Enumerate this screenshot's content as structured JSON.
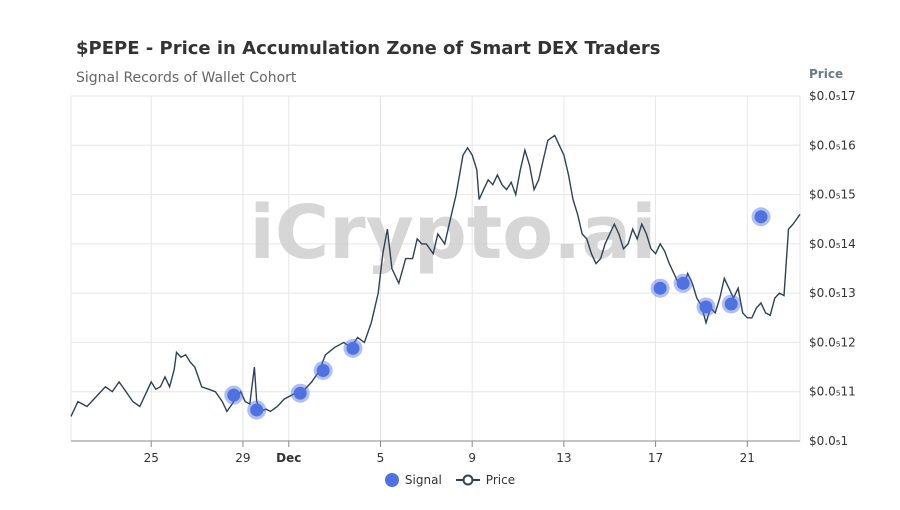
{
  "header": {
    "title": "$PEPE - Price in Accumulation Zone of Smart DEX Traders",
    "subtitle": "Signal Records of Wallet Cohort",
    "axis_title": "Price"
  },
  "watermark": "iCrypto.ai",
  "legend": {
    "signal": "Signal",
    "price": "Price"
  },
  "colors": {
    "line": "#2e4257",
    "signal": "#4f72e3",
    "grid": "#e6e6e6",
    "axis_text": "#333333",
    "watermark": "#cfcfcf"
  },
  "chart_data": {
    "type": "line",
    "title": "$PEPE - Price in Accumulation Zone of Smart DEX Traders",
    "subtitle": "Signal Records of Wallet Cohort",
    "ylabel": "Price",
    "ylim": [
      10.0,
      17.0
    ],
    "xlim": [
      21.5,
      53.3
    ],
    "x_unit": "day (Nov 22 = 22, Dec 1 = 31)",
    "y_ticks": [
      {
        "value": 10,
        "label": "$0.0₅1"
      },
      {
        "value": 11,
        "label": "$0.0₅11"
      },
      {
        "value": 12,
        "label": "$0.0₅12"
      },
      {
        "value": 13,
        "label": "$0.0₅13"
      },
      {
        "value": 14,
        "label": "$0.0₅14"
      },
      {
        "value": 15,
        "label": "$0.0₅15"
      },
      {
        "value": 16,
        "label": "$0.0₅16"
      },
      {
        "value": 17,
        "label": "$0.0₅17"
      }
    ],
    "x_ticks": [
      {
        "value": 25,
        "label": "25",
        "bold": false
      },
      {
        "value": 29,
        "label": "29",
        "bold": false
      },
      {
        "value": 31,
        "label": "Dec",
        "bold": true
      },
      {
        "value": 35,
        "label": "5",
        "bold": false
      },
      {
        "value": 39,
        "label": "9",
        "bold": false
      },
      {
        "value": 43,
        "label": "13",
        "bold": false
      },
      {
        "value": 47,
        "label": "17",
        "bold": false
      },
      {
        "value": 51,
        "label": "21",
        "bold": false
      }
    ],
    "series": [
      {
        "name": "Price",
        "points": [
          [
            21.5,
            10.5
          ],
          [
            21.8,
            10.8
          ],
          [
            22.2,
            10.7
          ],
          [
            22.6,
            10.9
          ],
          [
            23.0,
            11.1
          ],
          [
            23.3,
            11.0
          ],
          [
            23.6,
            11.2
          ],
          [
            23.9,
            11.0
          ],
          [
            24.2,
            10.8
          ],
          [
            24.5,
            10.7
          ],
          [
            24.8,
            11.0
          ],
          [
            25.0,
            11.2
          ],
          [
            25.2,
            11.05
          ],
          [
            25.4,
            11.1
          ],
          [
            25.6,
            11.3
          ],
          [
            25.8,
            11.1
          ],
          [
            26.0,
            11.45
          ],
          [
            26.1,
            11.8
          ],
          [
            26.3,
            11.7
          ],
          [
            26.5,
            11.75
          ],
          [
            26.7,
            11.6
          ],
          [
            26.9,
            11.5
          ],
          [
            27.2,
            11.1
          ],
          [
            27.5,
            11.05
          ],
          [
            27.8,
            11.0
          ],
          [
            28.1,
            10.8
          ],
          [
            28.3,
            10.6
          ],
          [
            28.6,
            10.8
          ],
          [
            28.9,
            11.0
          ],
          [
            29.1,
            10.8
          ],
          [
            29.3,
            10.75
          ],
          [
            29.5,
            11.5
          ],
          [
            29.6,
            10.8
          ],
          [
            29.8,
            10.6
          ],
          [
            30.0,
            10.65
          ],
          [
            30.2,
            10.6
          ],
          [
            30.5,
            10.7
          ],
          [
            30.8,
            10.85
          ],
          [
            31.2,
            10.95
          ],
          [
            31.6,
            11.0
          ],
          [
            32.0,
            11.2
          ],
          [
            32.3,
            11.4
          ],
          [
            32.6,
            11.75
          ],
          [
            33.0,
            11.9
          ],
          [
            33.4,
            12.0
          ],
          [
            33.7,
            11.9
          ],
          [
            34.0,
            12.1
          ],
          [
            34.3,
            12.0
          ],
          [
            34.6,
            12.4
          ],
          [
            34.9,
            13.0
          ],
          [
            35.1,
            13.8
          ],
          [
            35.3,
            14.3
          ],
          [
            35.5,
            13.5
          ],
          [
            35.8,
            13.2
          ],
          [
            36.1,
            13.7
          ],
          [
            36.4,
            13.7
          ],
          [
            36.6,
            14.1
          ],
          [
            36.8,
            14.0
          ],
          [
            37.0,
            14.0
          ],
          [
            37.3,
            13.8
          ],
          [
            37.5,
            14.2
          ],
          [
            37.8,
            14.0
          ],
          [
            38.1,
            14.6
          ],
          [
            38.3,
            15.0
          ],
          [
            38.6,
            15.8
          ],
          [
            38.8,
            15.95
          ],
          [
            39.0,
            15.8
          ],
          [
            39.2,
            15.5
          ],
          [
            39.3,
            14.9
          ],
          [
            39.5,
            15.1
          ],
          [
            39.7,
            15.3
          ],
          [
            39.9,
            15.2
          ],
          [
            40.1,
            15.4
          ],
          [
            40.3,
            15.2
          ],
          [
            40.5,
            15.1
          ],
          [
            40.7,
            15.25
          ],
          [
            40.9,
            15.0
          ],
          [
            41.1,
            15.5
          ],
          [
            41.3,
            15.9
          ],
          [
            41.5,
            15.6
          ],
          [
            41.7,
            15.1
          ],
          [
            41.9,
            15.3
          ],
          [
            42.1,
            15.7
          ],
          [
            42.3,
            16.1
          ],
          [
            42.6,
            16.2
          ],
          [
            42.8,
            16.0
          ],
          [
            43.0,
            15.8
          ],
          [
            43.2,
            15.4
          ],
          [
            43.4,
            14.9
          ],
          [
            43.6,
            14.6
          ],
          [
            43.8,
            14.2
          ],
          [
            44.0,
            14.1
          ],
          [
            44.2,
            13.8
          ],
          [
            44.4,
            13.6
          ],
          [
            44.6,
            13.7
          ],
          [
            44.8,
            14.0
          ],
          [
            45.0,
            14.2
          ],
          [
            45.2,
            14.4
          ],
          [
            45.4,
            14.2
          ],
          [
            45.6,
            13.9
          ],
          [
            45.8,
            14.0
          ],
          [
            46.0,
            14.3
          ],
          [
            46.2,
            14.1
          ],
          [
            46.4,
            14.4
          ],
          [
            46.6,
            14.2
          ],
          [
            46.8,
            13.9
          ],
          [
            47.0,
            13.8
          ],
          [
            47.2,
            14.0
          ],
          [
            47.4,
            13.85
          ],
          [
            47.6,
            13.6
          ],
          [
            47.8,
            13.4
          ],
          [
            48.0,
            13.2
          ],
          [
            48.2,
            13.1
          ],
          [
            48.4,
            13.4
          ],
          [
            48.6,
            13.2
          ],
          [
            48.8,
            12.9
          ],
          [
            49.0,
            12.75
          ],
          [
            49.2,
            12.4
          ],
          [
            49.4,
            12.7
          ],
          [
            49.6,
            12.6
          ],
          [
            49.8,
            12.9
          ],
          [
            50.0,
            13.3
          ],
          [
            50.2,
            13.1
          ],
          [
            50.4,
            12.9
          ],
          [
            50.6,
            13.1
          ],
          [
            50.8,
            12.6
          ],
          [
            51.0,
            12.5
          ],
          [
            51.2,
            12.5
          ],
          [
            51.4,
            12.7
          ],
          [
            51.6,
            12.8
          ],
          [
            51.8,
            12.6
          ],
          [
            52.0,
            12.55
          ],
          [
            52.2,
            12.9
          ],
          [
            52.4,
            13.0
          ],
          [
            52.6,
            12.95
          ],
          [
            52.8,
            14.3
          ],
          [
            53.0,
            14.4
          ],
          [
            53.3,
            14.6
          ]
        ]
      },
      {
        "name": "Signal",
        "points": [
          [
            28.6,
            10.93
          ],
          [
            29.6,
            10.63
          ],
          [
            31.5,
            10.97
          ],
          [
            32.5,
            11.43
          ],
          [
            33.8,
            11.88
          ],
          [
            47.2,
            13.1
          ],
          [
            48.2,
            13.2
          ],
          [
            49.2,
            12.72
          ],
          [
            50.3,
            12.78
          ],
          [
            51.6,
            14.55
          ]
        ]
      }
    ]
  }
}
